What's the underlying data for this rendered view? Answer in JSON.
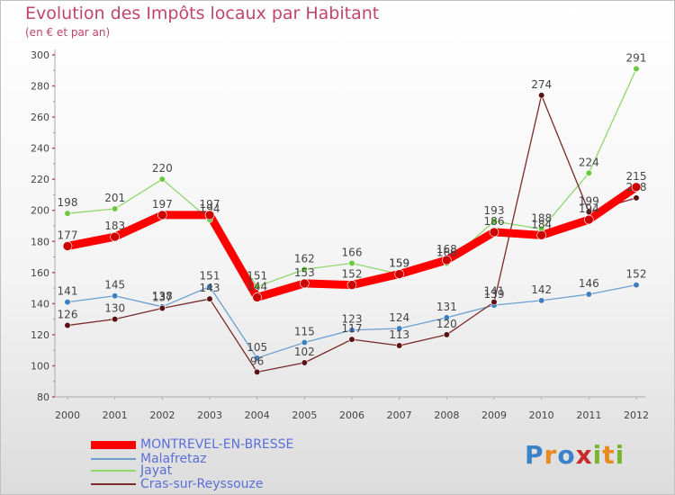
{
  "header": {
    "title": "Evolution des Impôts locaux par Habitant",
    "subtitle": "(en € et par an)"
  },
  "logo": {
    "letters": [
      {
        "ch": "P",
        "color": "#3a83c9"
      },
      {
        "ch": "r",
        "color": "#e98a21"
      },
      {
        "ch": "o",
        "color": "#3a83c9"
      },
      {
        "ch": "x",
        "color": "#c92a2a"
      },
      {
        "ch": "i",
        "color": "#7ab530"
      },
      {
        "ch": "t",
        "color": "#e98a21"
      },
      {
        "ch": "i",
        "color": "#7ab530"
      }
    ]
  },
  "chart_data": {
    "type": "line",
    "title": "Evolution des Impôts locaux par Habitant",
    "subtitle": "(en € et par an)",
    "xlabel": "",
    "ylabel": "",
    "categories": [
      "2000",
      "2001",
      "2002",
      "2003",
      "2004",
      "2005",
      "2006",
      "2007",
      "2008",
      "2009",
      "2010",
      "2011",
      "2012"
    ],
    "ylim": [
      80,
      300
    ],
    "yticks": [
      80,
      100,
      120,
      140,
      160,
      180,
      200,
      220,
      240,
      260,
      280,
      300
    ],
    "grid": false,
    "legend": "bottom-left",
    "series": [
      {
        "name": "Jayat",
        "color": "#8fd76c",
        "marker": "#6cc840",
        "width": 1.3,
        "values": [
          198,
          201,
          220,
          194,
          151,
          162,
          166,
          159,
          166,
          193,
          188,
          224,
          291
        ],
        "labels": [
          "198",
          "201",
          "220",
          "194",
          "151",
          "162",
          "166",
          "159",
          "166",
          "193",
          "188",
          "224",
          "291"
        ]
      },
      {
        "name": "Malafretaz",
        "color": "#6a9fd0",
        "marker": "#3f7fc0",
        "width": 1.3,
        "values": [
          141,
          145,
          138,
          151,
          105,
          115,
          123,
          124,
          131,
          139,
          142,
          146,
          152
        ],
        "labels": [
          "141",
          "145",
          "138",
          "151",
          "105",
          "115",
          "123",
          "124",
          "131",
          "139",
          "142",
          "146",
          "152"
        ]
      },
      {
        "name": "Cras-sur-Reyssouze",
        "color": "#7a2a2a",
        "marker": "#5a1212",
        "width": 1.3,
        "values": [
          126,
          130,
          137,
          143,
          96,
          102,
          117,
          113,
          120,
          141,
          274,
          199,
          208
        ],
        "labels": [
          "126",
          "130",
          "137",
          "143",
          "96",
          "102",
          "117",
          "113",
          "120",
          "141",
          "274",
          "199",
          "208"
        ]
      },
      {
        "name": "MONTREVEL-EN-BRESSE",
        "color": "#ff0000",
        "marker": "#cc0000",
        "width": 9,
        "values": [
          177,
          183,
          197,
          197,
          144,
          153,
          152,
          159,
          168,
          186,
          184,
          194,
          215
        ],
        "labels": [
          "177",
          "183",
          "197",
          "197",
          "144",
          "153",
          "152",
          "159",
          "168",
          "186",
          "184",
          "194",
          "215"
        ]
      }
    ]
  },
  "legend": {
    "items": [
      {
        "label": "MONTREVEL-EN-BRESSE",
        "color": "#ff0000",
        "thickness": 9
      },
      {
        "label": "Malafretaz",
        "color": "#6a9fd0",
        "thickness": 2
      },
      {
        "label": "Jayat",
        "color": "#8fd76c",
        "thickness": 2
      },
      {
        "label": "Cras-sur-Reyssouze",
        "color": "#7a2a2a",
        "thickness": 2
      }
    ]
  }
}
